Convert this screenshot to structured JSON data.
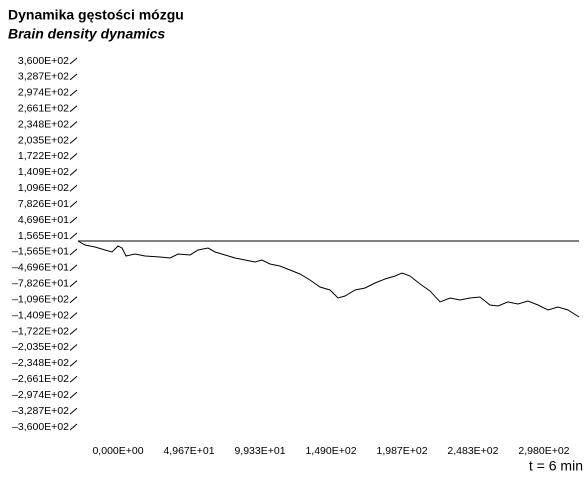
{
  "chart_data": {
    "type": "line",
    "title": "Dynamika gęstości mózgu",
    "subtitle": "Brain density dynamics",
    "x_note": "t = 6 min",
    "color": "#000000",
    "xlim": [
      -28,
      322.5
    ],
    "ylim": [
      -360,
      360
    ],
    "xticks": [
      {
        "value": 0,
        "label": "0,000E+00"
      },
      {
        "value": 49.67,
        "label": "4,967E+01"
      },
      {
        "value": 99.33,
        "label": "9,933E+01"
      },
      {
        "value": 149,
        "label": "1,490E+02"
      },
      {
        "value": 198.7,
        "label": "1,987E+02"
      },
      {
        "value": 248.3,
        "label": "2,483E+02"
      },
      {
        "value": 298,
        "label": "2,980E+02"
      }
    ],
    "yticks": [
      {
        "value": 360,
        "label": "3,600E+02"
      },
      {
        "value": 328.7,
        "label": "3,287E+02"
      },
      {
        "value": 297.4,
        "label": "2,974E+02"
      },
      {
        "value": 266.1,
        "label": "2,661E+02"
      },
      {
        "value": 234.8,
        "label": "2,348E+02"
      },
      {
        "value": 203.5,
        "label": "2,035E+02"
      },
      {
        "value": 172.2,
        "label": "1,722E+02"
      },
      {
        "value": 140.9,
        "label": "1,409E+02"
      },
      {
        "value": 109.6,
        "label": "1,096E+02"
      },
      {
        "value": 78.26,
        "label": "7,826E+01"
      },
      {
        "value": 46.96,
        "label": "4,696E+01"
      },
      {
        "value": 15.65,
        "label": "1,565E+01"
      },
      {
        "value": -15.65,
        "label": "–1,565E+01"
      },
      {
        "value": -46.96,
        "label": "–4,696E+01"
      },
      {
        "value": -78.26,
        "label": "–7,826E+01"
      },
      {
        "value": -109.6,
        "label": "–1,096E+02"
      },
      {
        "value": -140.9,
        "label": "–1,409E+02"
      },
      {
        "value": -172.2,
        "label": "–1,722E+02"
      },
      {
        "value": -203.5,
        "label": "–2,035E+02"
      },
      {
        "value": -234.8,
        "label": "–2,348E+02"
      },
      {
        "value": -266.1,
        "label": "–2,661E+02"
      },
      {
        "value": -297.4,
        "label": "–2,974E+02"
      },
      {
        "value": -328.7,
        "label": "–3,287E+02"
      },
      {
        "value": -360,
        "label": "–3,600E+02"
      }
    ],
    "x": [
      -28,
      -23.1,
      -16.1,
      -9.1,
      -4.2,
      0,
      2.8,
      5.6,
      11.9,
      18.9,
      29.4,
      36.4,
      42,
      50.4,
      56,
      63,
      67.9,
      74.9,
      81.9,
      88.9,
      95.8,
      100.7,
      106.3,
      113.3,
      120.3,
      127.3,
      134.3,
      141.3,
      148.3,
      153.9,
      158.8,
      165.8,
      172.8,
      179.8,
      186.8,
      193.8,
      198.7,
      204.3,
      211.3,
      218.3,
      225.3,
      232.3,
      239.3,
      246.3,
      253.2,
      260.2,
      265.8,
      272.8,
      279.8,
      286.8,
      293.8,
      300.8,
      307.8,
      314.8,
      322.5
    ],
    "values": [
      5.9,
      -2,
      -5.9,
      -11.8,
      -15.7,
      -3.9,
      -7.9,
      -23.6,
      -19.7,
      -23.6,
      -25.6,
      -27.5,
      -19.7,
      -21.6,
      -11.8,
      -7.9,
      -15.7,
      -21.6,
      -27.5,
      -31.5,
      -35.4,
      -31.5,
      -39.3,
      -43.3,
      -51.1,
      -59,
      -70.8,
      -84.6,
      -90.5,
      -106.2,
      -102.3,
      -90.5,
      -86.5,
      -76.7,
      -68.9,
      -63,
      -57,
      -63,
      -78.7,
      -92.4,
      -114,
      -106.2,
      -110.1,
      -106.2,
      -104.3,
      -120,
      -122,
      -114,
      -118,
      -112.1,
      -120,
      -129.8,
      -123.9,
      -129.8,
      -143.6
    ]
  }
}
